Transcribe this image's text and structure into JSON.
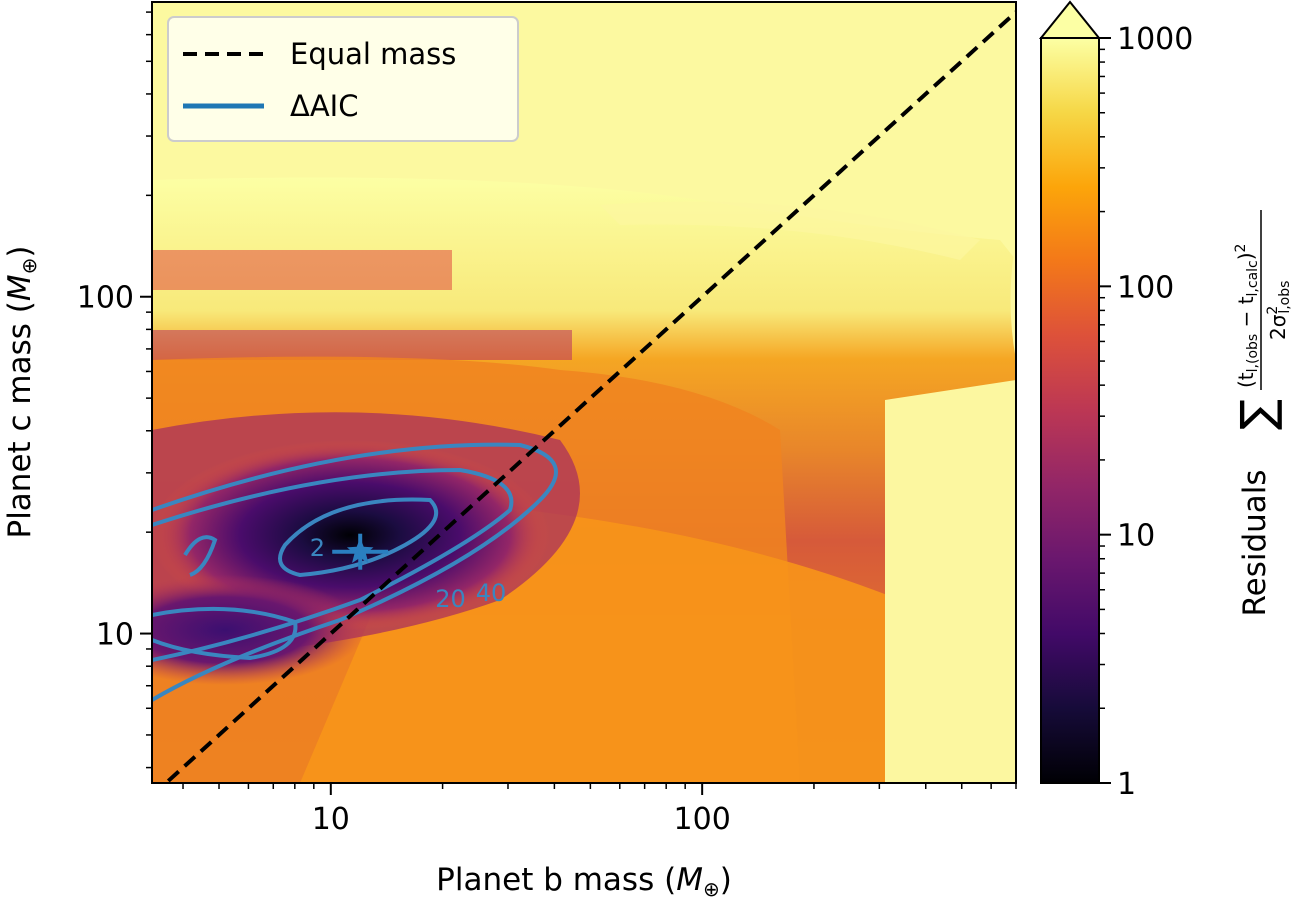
{
  "chart_data": {
    "type": "heatmap",
    "title": "",
    "xlabel": "Planet b mass (",
    "xlabel_unit": "M",
    "xlabel_sub": "⊕",
    "ylabel": "Planet c mass (",
    "ylabel_unit": "M",
    "ylabel_sub": "⊕",
    "x_scale": "log",
    "y_scale": "log",
    "xlim": [
      3.3,
      700
    ],
    "ylim": [
      3.6,
      750
    ],
    "x_ticks": [
      {
        "value": 10,
        "label": "10"
      },
      {
        "value": 100,
        "label": "100"
      }
    ],
    "y_ticks": [
      {
        "value": 10,
        "label": "10"
      },
      {
        "value": 100,
        "label": "100"
      }
    ],
    "colorbar": {
      "label": "Residuals",
      "formula_sum": "∑",
      "formula_numerator": "(t",
      "formula_num_sub1": "l,(obs",
      "formula_num_minus": " − t",
      "formula_num_sub2": "l,calc",
      "formula_num_close": ")",
      "formula_num_power": "2",
      "formula_denominator": "2σ",
      "formula_den_power": "2",
      "formula_den_sub": "l,obs",
      "scale": "log",
      "range": [
        1,
        1000
      ],
      "extend": "max",
      "colormap": "inferno",
      "ticks": [
        {
          "value": 1,
          "label": "1"
        },
        {
          "value": 10,
          "label": "10"
        },
        {
          "value": 100,
          "label": "100"
        },
        {
          "value": 1000,
          "label": "1000"
        }
      ]
    },
    "legend": {
      "placement": "top-left",
      "entries": [
        {
          "label": "Equal mass",
          "style": "dashed",
          "color": "#000000"
        },
        {
          "label": "ΔAIC",
          "style": "solid",
          "color": "#1f77b4"
        }
      ]
    },
    "equal_mass_line": {
      "x": [
        3.3,
        700
      ],
      "y": [
        3.3,
        700
      ]
    },
    "contour_labels": [
      {
        "text": "2",
        "x": 9.2,
        "y": 17
      },
      {
        "text": "20",
        "x": 21,
        "y": 12
      },
      {
        "text": "40",
        "x": 27,
        "y": 12.5
      }
    ],
    "best_fit": {
      "x": 12,
      "y": 17.5,
      "marker": "star"
    },
    "colors": {
      "contour": "#3a86c0",
      "best_fit": "#2a7fc0",
      "frame": "#000000"
    }
  }
}
